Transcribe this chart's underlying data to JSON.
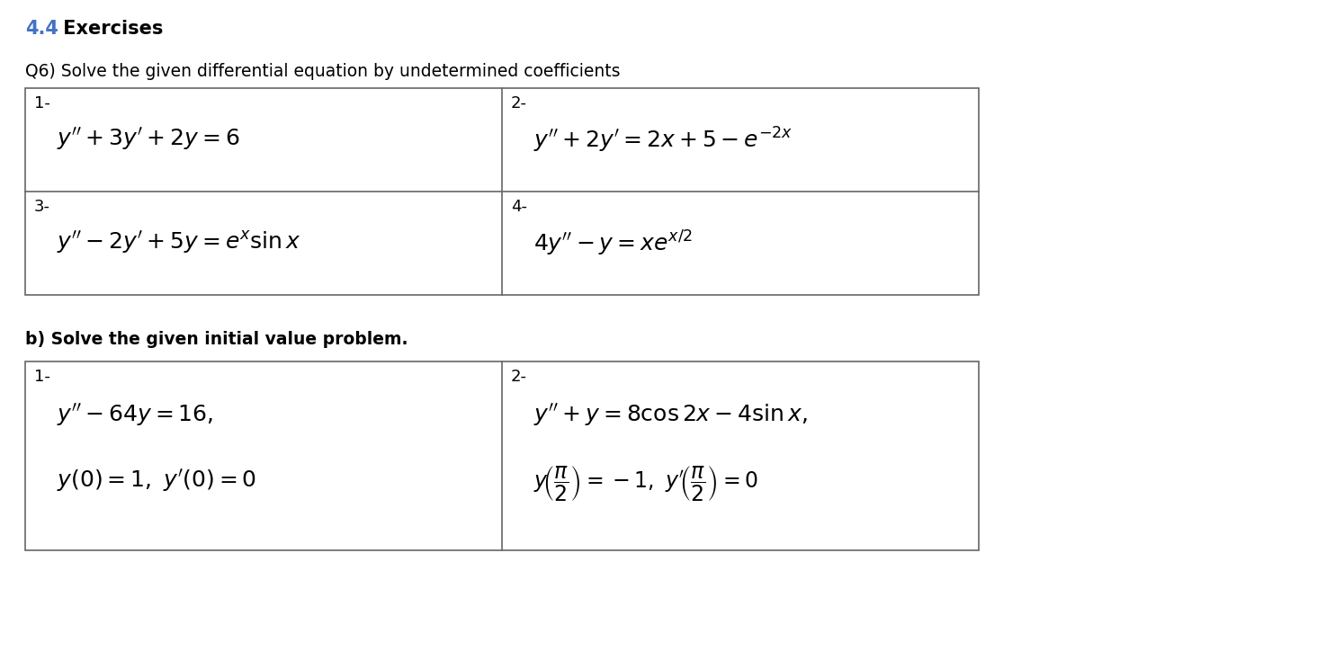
{
  "bg_color": "#ffffff",
  "title_44": "4.4",
  "title_ex": " Exercises",
  "title_color": "#4472C4",
  "q6_label": "Q6) Solve the given differential equation by undetermined coefficients",
  "qb_label": "b) Solve the given initial value problem.",
  "figw": 14.94,
  "figh": 7.34,
  "dpi": 100
}
